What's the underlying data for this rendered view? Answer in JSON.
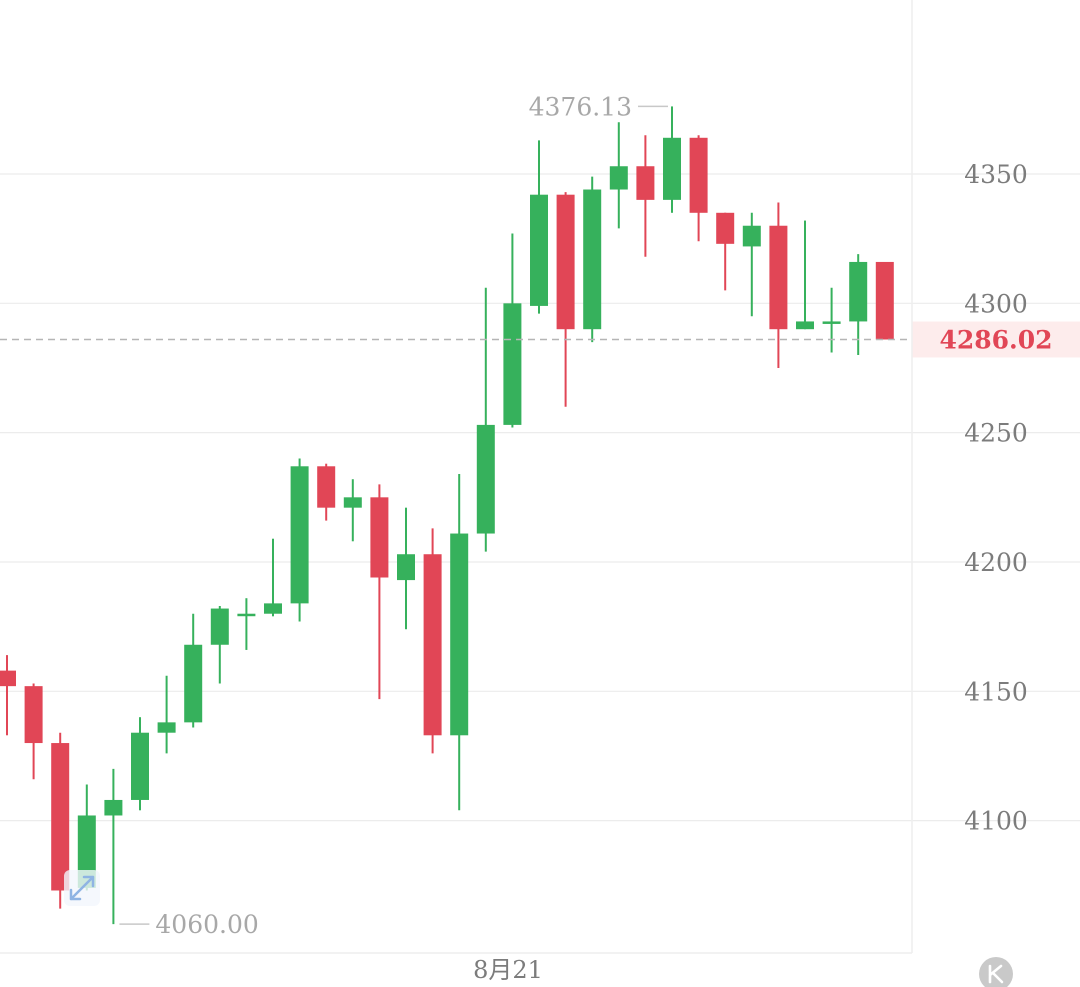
{
  "colors": {
    "up": "#36b15c",
    "down": "#e14656",
    "grid": "#ececec",
    "axis_text": "#7c7c7c",
    "last_price": "#e14656",
    "last_price_bg": "#fdecec",
    "extreme_label": "#a8a8a8"
  },
  "icons": {
    "expand": "expand-arrows-icon",
    "k_badge": "k-letter-icon"
  },
  "chart_data": {
    "type": "candlestick",
    "y_ticks": [
      "4350",
      "4300",
      "4250",
      "4200",
      "4150",
      "4100"
    ],
    "ylim": [
      4050,
      4395
    ],
    "x_tick_label": "8月21",
    "grid": true,
    "last_price": "4286.02",
    "high_label": "4376.13",
    "low_label": "4060.00",
    "candles": [
      {
        "open": 4158,
        "close": 4152,
        "high": 4164,
        "low": 4133
      },
      {
        "open": 4152,
        "close": 4130,
        "high": 4153,
        "low": 4116
      },
      {
        "open": 4130,
        "close": 4073,
        "high": 4134,
        "low": 4066
      },
      {
        "open": 4074,
        "close": 4102,
        "high": 4114,
        "low": 4073
      },
      {
        "open": 4102,
        "close": 4108,
        "high": 4120,
        "low": 4060
      },
      {
        "open": 4108,
        "close": 4134,
        "high": 4140,
        "low": 4104
      },
      {
        "open": 4134,
        "close": 4138,
        "high": 4156,
        "low": 4126
      },
      {
        "open": 4138,
        "close": 4168,
        "high": 4180,
        "low": 4136
      },
      {
        "open": 4168,
        "close": 4182,
        "high": 4183,
        "low": 4153
      },
      {
        "open": 4180,
        "close": 4180,
        "high": 4186,
        "low": 4166
      },
      {
        "open": 4180,
        "close": 4184,
        "high": 4209,
        "low": 4179
      },
      {
        "open": 4184,
        "close": 4237,
        "high": 4240,
        "low": 4177
      },
      {
        "open": 4237,
        "close": 4221,
        "high": 4238,
        "low": 4216
      },
      {
        "open": 4221,
        "close": 4225,
        "high": 4232,
        "low": 4208
      },
      {
        "open": 4225,
        "close": 4194,
        "high": 4230,
        "low": 4147
      },
      {
        "open": 4193,
        "close": 4203,
        "high": 4221,
        "low": 4174
      },
      {
        "open": 4203,
        "close": 4133,
        "high": 4213,
        "low": 4126
      },
      {
        "open": 4133,
        "close": 4211,
        "high": 4234,
        "low": 4104
      },
      {
        "open": 4211,
        "close": 4253,
        "high": 4306,
        "low": 4204
      },
      {
        "open": 4253,
        "close": 4300,
        "high": 4327,
        "low": 4252
      },
      {
        "open": 4299,
        "close": 4342,
        "high": 4363,
        "low": 4296
      },
      {
        "open": 4342,
        "close": 4290,
        "high": 4343,
        "low": 4260
      },
      {
        "open": 4290,
        "close": 4344,
        "high": 4349,
        "low": 4285
      },
      {
        "open": 4344,
        "close": 4353,
        "high": 4370,
        "low": 4329
      },
      {
        "open": 4353,
        "close": 4340,
        "high": 4365,
        "low": 4318
      },
      {
        "open": 4340,
        "close": 4364,
        "high": 4376.13,
        "low": 4335
      },
      {
        "open": 4364,
        "close": 4335,
        "high": 4365,
        "low": 4324
      },
      {
        "open": 4335,
        "close": 4323,
        "high": 4335,
        "low": 4305
      },
      {
        "open": 4322,
        "close": 4330,
        "high": 4335,
        "low": 4295
      },
      {
        "open": 4330,
        "close": 4290,
        "high": 4339,
        "low": 4275
      },
      {
        "open": 4290,
        "close": 4293,
        "high": 4332,
        "low": 4290
      },
      {
        "open": 4293,
        "close": 4293,
        "high": 4306,
        "low": 4281
      },
      {
        "open": 4293,
        "close": 4316,
        "high": 4319,
        "low": 4280
      },
      {
        "open": 4316,
        "close": 4286.02,
        "high": 4316,
        "low": 4286.02
      }
    ]
  }
}
